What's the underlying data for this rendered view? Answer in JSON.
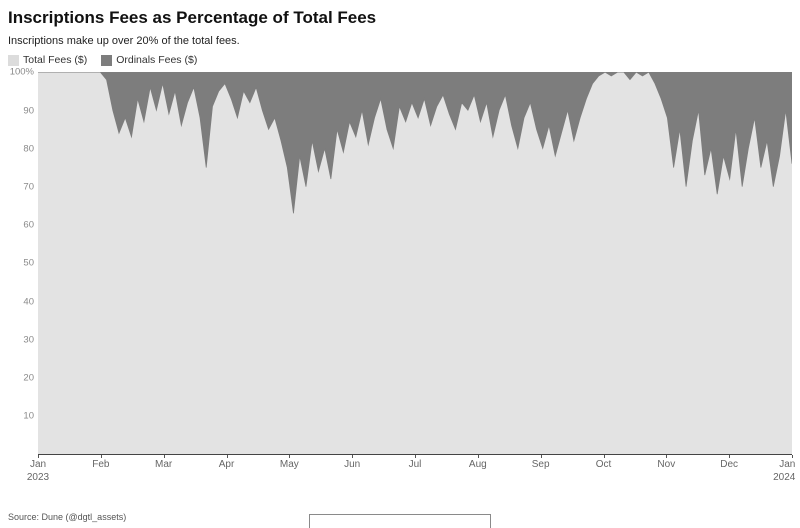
{
  "header": {
    "title": "Inscriptions Fees as Percentage of Total Fees",
    "subtitle": "Inscriptions make up over 20% of the total fees."
  },
  "legend": {
    "items": [
      {
        "label": "Total Fees ($)",
        "color": "#dcdcdc"
      },
      {
        "label": "Ordinals Fees ($)",
        "color": "#7d7d7d"
      }
    ]
  },
  "source": "Source: Dune (@dgtl_assets)",
  "colors": {
    "plot_background": "#e3e3e3",
    "total_area": "#e3e3e3",
    "ordinals_area": "#7d7d7d",
    "axis": "#444444",
    "tick_text": "#8a8a8a"
  },
  "chart_data": {
    "type": "area",
    "stacked_percent": true,
    "title": "Inscriptions Fees as Percentage of Total Fees",
    "subtitle": "Inscriptions make up over 20% of the total fees.",
    "x_range": [
      "Jan 2023",
      "Jan 2024"
    ],
    "sampling": "approximately every 3 days",
    "ylim": [
      0,
      100
    ],
    "yticks": [
      100,
      90,
      80,
      70,
      60,
      50,
      40,
      30,
      20,
      10
    ],
    "ytick_labels": [
      "100%",
      "90",
      "80",
      "70",
      "60",
      "50",
      "40",
      "30",
      "20",
      "10"
    ],
    "months": [
      {
        "m": "Jan",
        "y": "2023"
      },
      {
        "m": "Feb"
      },
      {
        "m": "Mar"
      },
      {
        "m": "Apr"
      },
      {
        "m": "May"
      },
      {
        "m": "Jun"
      },
      {
        "m": "Jul"
      },
      {
        "m": "Aug"
      },
      {
        "m": "Sep"
      },
      {
        "m": "Oct"
      },
      {
        "m": "Nov"
      },
      {
        "m": "Dec"
      },
      {
        "m": "Jan",
        "y": "2024"
      }
    ],
    "legend_position": "top-left",
    "grid": false,
    "series": [
      {
        "name": "Total Fees ($)",
        "role": "lower band (0% up to boundary)",
        "color": "#e3e3e3",
        "values": [
          100,
          100,
          100,
          100,
          100,
          100,
          100,
          100,
          100,
          100,
          100,
          98,
          90,
          84,
          88,
          83,
          93,
          87,
          96,
          90,
          97,
          89,
          95,
          86,
          92,
          96,
          88,
          75,
          91,
          95,
          97,
          93,
          88,
          95,
          92,
          96,
          90,
          85,
          88,
          82,
          75,
          63,
          78,
          70,
          82,
          74,
          80,
          72,
          85,
          79,
          87,
          83,
          90,
          81,
          88,
          93,
          85,
          80,
          91,
          87,
          92,
          88,
          93,
          86,
          91,
          94,
          89,
          85,
          92,
          90,
          94,
          87,
          92,
          83,
          90,
          94,
          86,
          80,
          88,
          92,
          85,
          80,
          86,
          78,
          84,
          90,
          82,
          88,
          93,
          97,
          99,
          100,
          99,
          100,
          100,
          98,
          100,
          99,
          100,
          97,
          93,
          88,
          75,
          85,
          70,
          82,
          90,
          73,
          80,
          68,
          78,
          72,
          85,
          70,
          80,
          88,
          75,
          82,
          70,
          78,
          90,
          76
        ]
      },
      {
        "name": "Ordinals Fees ($)",
        "role": "upper band (boundary up to 100%)",
        "color": "#7d7d7d",
        "derivation": "100 minus Total Fees boundary values"
      }
    ]
  }
}
